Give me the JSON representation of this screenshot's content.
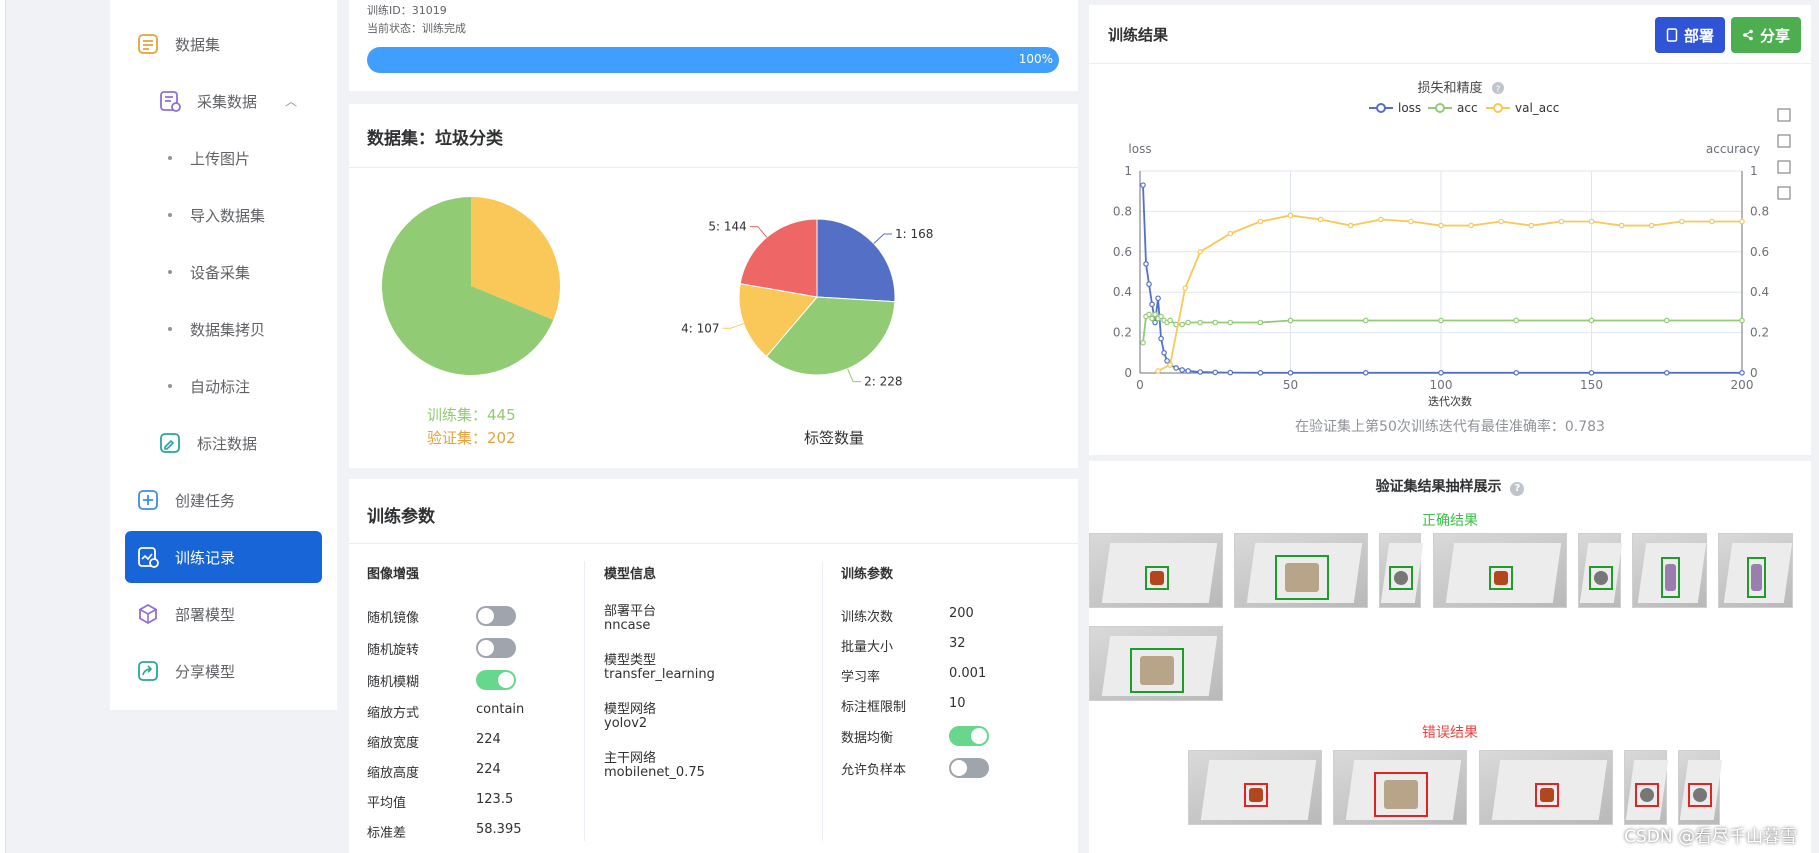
{
  "sidebar": {
    "items": [
      {
        "label": "数据集",
        "icon": "dataset-icon"
      },
      {
        "label": "采集数据",
        "icon": "collect-icon"
      },
      {
        "label": "上传图片"
      },
      {
        "label": "导入数据集"
      },
      {
        "label": "设备采集"
      },
      {
        "label": "数据集拷贝"
      },
      {
        "label": "自动标注"
      },
      {
        "label": "标注数据",
        "icon": "annotate-icon"
      },
      {
        "label": "创建任务",
        "icon": "plus-icon"
      },
      {
        "label": "训练记录",
        "icon": "record-icon"
      },
      {
        "label": "部署模型",
        "icon": "cube-icon"
      },
      {
        "label": "分享模型",
        "icon": "share-icon"
      }
    ]
  },
  "train_info": {
    "id_line": "训练ID：31019",
    "status_line": "当前状态：训练完成",
    "progress": 100,
    "progress_label": "100%"
  },
  "dataset": {
    "title": "数据集：垃圾分类",
    "split": {
      "train_label": "训练集：445",
      "val_label": "验证集：202",
      "train": 445,
      "val": 202,
      "train_color": "#91cc75",
      "val_color": "#fac858"
    },
    "labels_caption": "标签数量",
    "labels": [
      {
        "name": "1: 168",
        "value": 168,
        "color": "#5470c6"
      },
      {
        "name": "2: 228",
        "value": 228,
        "color": "#91cc75"
      },
      {
        "name": "4: 107",
        "value": 107,
        "color": "#fac858"
      },
      {
        "name": "5: 144",
        "value": 144,
        "color": "#ee6666"
      }
    ]
  },
  "params": {
    "title": "训练参数",
    "aug": {
      "title": "图像增强",
      "toggles": [
        {
          "label": "随机镜像",
          "on": false
        },
        {
          "label": "随机旋转",
          "on": false
        },
        {
          "label": "随机模糊",
          "on": true
        }
      ],
      "rows": [
        {
          "label": "缩放方式",
          "value": "contain"
        },
        {
          "label": "缩放宽度",
          "value": "224"
        },
        {
          "label": "缩放高度",
          "value": "224"
        },
        {
          "label": "平均值",
          "value": "123.5"
        },
        {
          "label": "标准差",
          "value": "58.395"
        }
      ]
    },
    "model": {
      "title": "模型信息",
      "rows": [
        {
          "label": "部署平台",
          "value": "nncase"
        },
        {
          "label": "模型类型",
          "value": "transfer_learning"
        },
        {
          "label": "模型网络",
          "value": "yolov2"
        },
        {
          "label": "主干网络",
          "value": "mobilenet_0.75"
        }
      ]
    },
    "train": {
      "title": "训练参数",
      "rows": [
        {
          "label": "训练次数",
          "value": "200"
        },
        {
          "label": "批量大小",
          "value": "32"
        },
        {
          "label": "学习率",
          "value": "0.001"
        },
        {
          "label": "标注框限制",
          "value": "10"
        }
      ],
      "toggles": [
        {
          "label": "数据均衡",
          "on": true
        },
        {
          "label": "允许负样本",
          "on": false
        }
      ]
    }
  },
  "results": {
    "title": "训练结果",
    "deploy_label": "部署",
    "share_label": "分享",
    "best_text": "在验证集上第50次训练迭代有最佳准确率：0.783",
    "samples_title": "验证集结果抽样展示",
    "correct_label": "正确结果",
    "wrong_label": "错误结果",
    "help": "?"
  },
  "chart_data": {
    "type": "line",
    "title": "损失和精度",
    "xlabel": "迭代次数",
    "ylabel_left": "loss",
    "ylabel_right": "accuracy",
    "xlim": [
      0,
      200
    ],
    "ylim": [
      0,
      1
    ],
    "x_ticks": [
      "0",
      "50",
      "100",
      "150",
      "200"
    ],
    "y_ticks": [
      "0",
      "0.2",
      "0.4",
      "0.6",
      "0.8",
      "1"
    ],
    "legend_position": "top-center",
    "grid": true,
    "series": [
      {
        "name": "loss",
        "color": "#5470c6",
        "axis": "left",
        "x": [
          1,
          2,
          3,
          4,
          5,
          6,
          7,
          8,
          9,
          10,
          12,
          14,
          16,
          20,
          25,
          30,
          40,
          50,
          75,
          100,
          125,
          150,
          175,
          200
        ],
        "y": [
          0.93,
          0.54,
          0.44,
          0.34,
          0.25,
          0.37,
          0.17,
          0.1,
          0.06,
          0.04,
          0.025,
          0.015,
          0.01,
          0.005,
          0.003,
          0.002,
          0.001,
          0.001,
          0.001,
          0.001,
          0.001,
          0.001,
          0.001,
          0.001
        ]
      },
      {
        "name": "acc",
        "color": "#91cc75",
        "axis": "right",
        "x": [
          1,
          2,
          3,
          4,
          5,
          6,
          7,
          8,
          9,
          10,
          12,
          14,
          16,
          20,
          25,
          30,
          40,
          50,
          75,
          100,
          125,
          150,
          175,
          200
        ],
        "y": [
          0.15,
          0.28,
          0.29,
          0.27,
          0.29,
          0.27,
          0.28,
          0.26,
          0.25,
          0.26,
          0.24,
          0.24,
          0.25,
          0.25,
          0.25,
          0.25,
          0.25,
          0.26,
          0.26,
          0.26,
          0.26,
          0.26,
          0.26,
          0.26
        ]
      },
      {
        "name": "val_acc",
        "color": "#fac858",
        "axis": "right",
        "x": [
          6,
          10,
          15,
          20,
          30,
          40,
          50,
          60,
          70,
          80,
          90,
          100,
          110,
          120,
          130,
          140,
          150,
          160,
          170,
          180,
          190,
          200
        ],
        "y": [
          0.01,
          0.04,
          0.42,
          0.6,
          0.69,
          0.75,
          0.78,
          0.76,
          0.73,
          0.76,
          0.75,
          0.73,
          0.73,
          0.75,
          0.73,
          0.75,
          0.75,
          0.73,
          0.73,
          0.75,
          0.75,
          0.75
        ]
      }
    ]
  },
  "watermark": "CSDN @看尽千山暮雪"
}
